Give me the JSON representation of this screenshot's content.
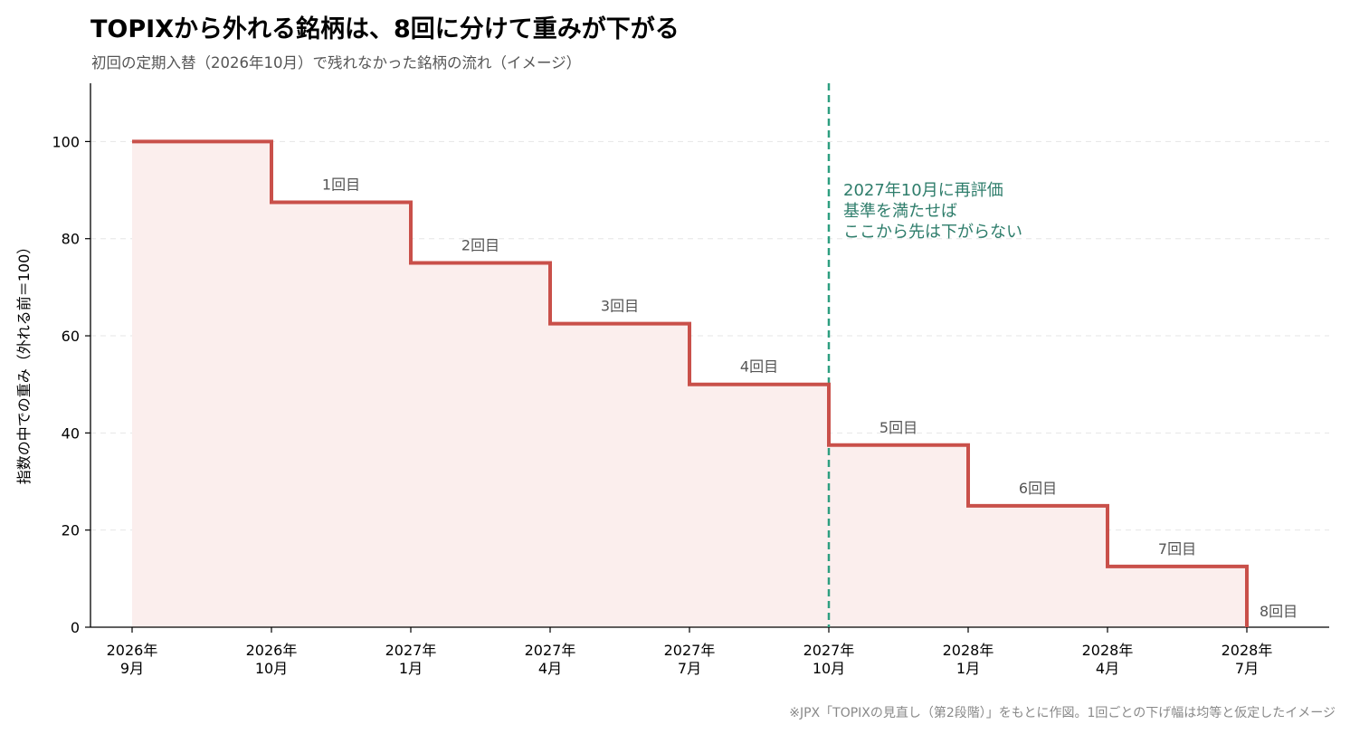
{
  "chart_data": {
    "type": "line",
    "step": "post",
    "title": "TOPIXから外れる銘柄は、8回に分けて重みが下がる",
    "subtitle": "初回の定期入替（2026年10月）で残れなかった銘柄の流れ（イメージ）",
    "ylabel": "指数の中での重み（外れる前＝100）",
    "xlabel": "",
    "ylim": [
      0,
      112
    ],
    "yticks": [
      0,
      20,
      40,
      60,
      80,
      100
    ],
    "grid": "horizontal dashed",
    "x": [
      [
        "2026年",
        "9月"
      ],
      [
        "2026年",
        "10月"
      ],
      [
        "2027年",
        "1月"
      ],
      [
        "2027年",
        "4月"
      ],
      [
        "2027年",
        "7月"
      ],
      [
        "2027年",
        "10月"
      ],
      [
        "2028年",
        "1月"
      ],
      [
        "2028年",
        "4月"
      ],
      [
        "2028年",
        "7月"
      ]
    ],
    "values": [
      100,
      87.5,
      75,
      62.5,
      50,
      37.5,
      25,
      12.5,
      0
    ],
    "step_labels": [
      "1回目",
      "2回目",
      "3回目",
      "4回目",
      "5回目",
      "6回目",
      "7回目",
      "8回目"
    ],
    "annotation": {
      "x_index": 5,
      "lines": [
        "2027年10月に再評価",
        "基準を満たせば",
        "ここから先は下がらない"
      ]
    },
    "colors": {
      "line": "#c9504a",
      "fill": "#fbeeed",
      "annotation": "#2e9f80",
      "annotation_text": "#2e7d6b"
    }
  },
  "footnote": "※JPX「TOPIXの見直し（第2段階）」をもとに作図。1回ごとの下げ幅は均等と仮定したイメージ"
}
